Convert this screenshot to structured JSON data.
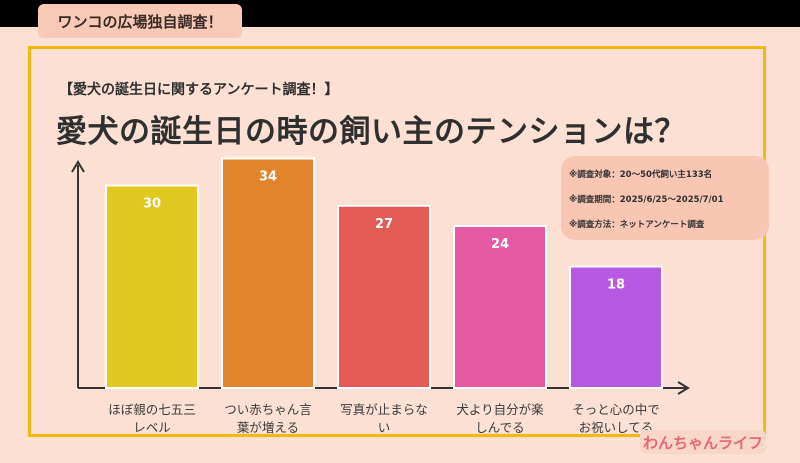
{
  "header": {
    "tag_label": "ワンコの広場独自調査！"
  },
  "survey": {
    "subtitle": "【愛犬の誕生日に関するアンケート調査！】",
    "title": "愛犬の誕生日の時の飼い主のテンションは？",
    "notes": [
      "※調査対象：20〜50代飼い主133名",
      "※調査期間：2025/6/25〜2025/7/01",
      "※調査方法：ネットアンケート調査"
    ]
  },
  "chart_data": {
    "type": "bar",
    "categories": [
      "ほぼ親の七五三レベル",
      "つい赤ちゃん言葉が増える",
      "写真が止まらない",
      "犬より自分が楽しんでる",
      "そっと心の中でお祝いしてる"
    ],
    "category_lines": [
      [
        "ほぼ親の七五三",
        "レベル"
      ],
      [
        "つい赤ちゃん言",
        "葉が増える"
      ],
      [
        "写真が止まらな",
        "い"
      ],
      [
        "犬より自分が楽",
        "しんでる"
      ],
      [
        "そっと心の中で",
        "お祝いしてる"
      ]
    ],
    "values": [
      30,
      34,
      27,
      24,
      18
    ],
    "colors": [
      "#e1c81f",
      "#e1842b",
      "#e45a55",
      "#e55aa2",
      "#b659e3"
    ],
    "ylim": [
      0,
      40
    ],
    "grid": false,
    "show_values": true
  },
  "footer": {
    "logo_text": "わんちゃんライフ"
  }
}
